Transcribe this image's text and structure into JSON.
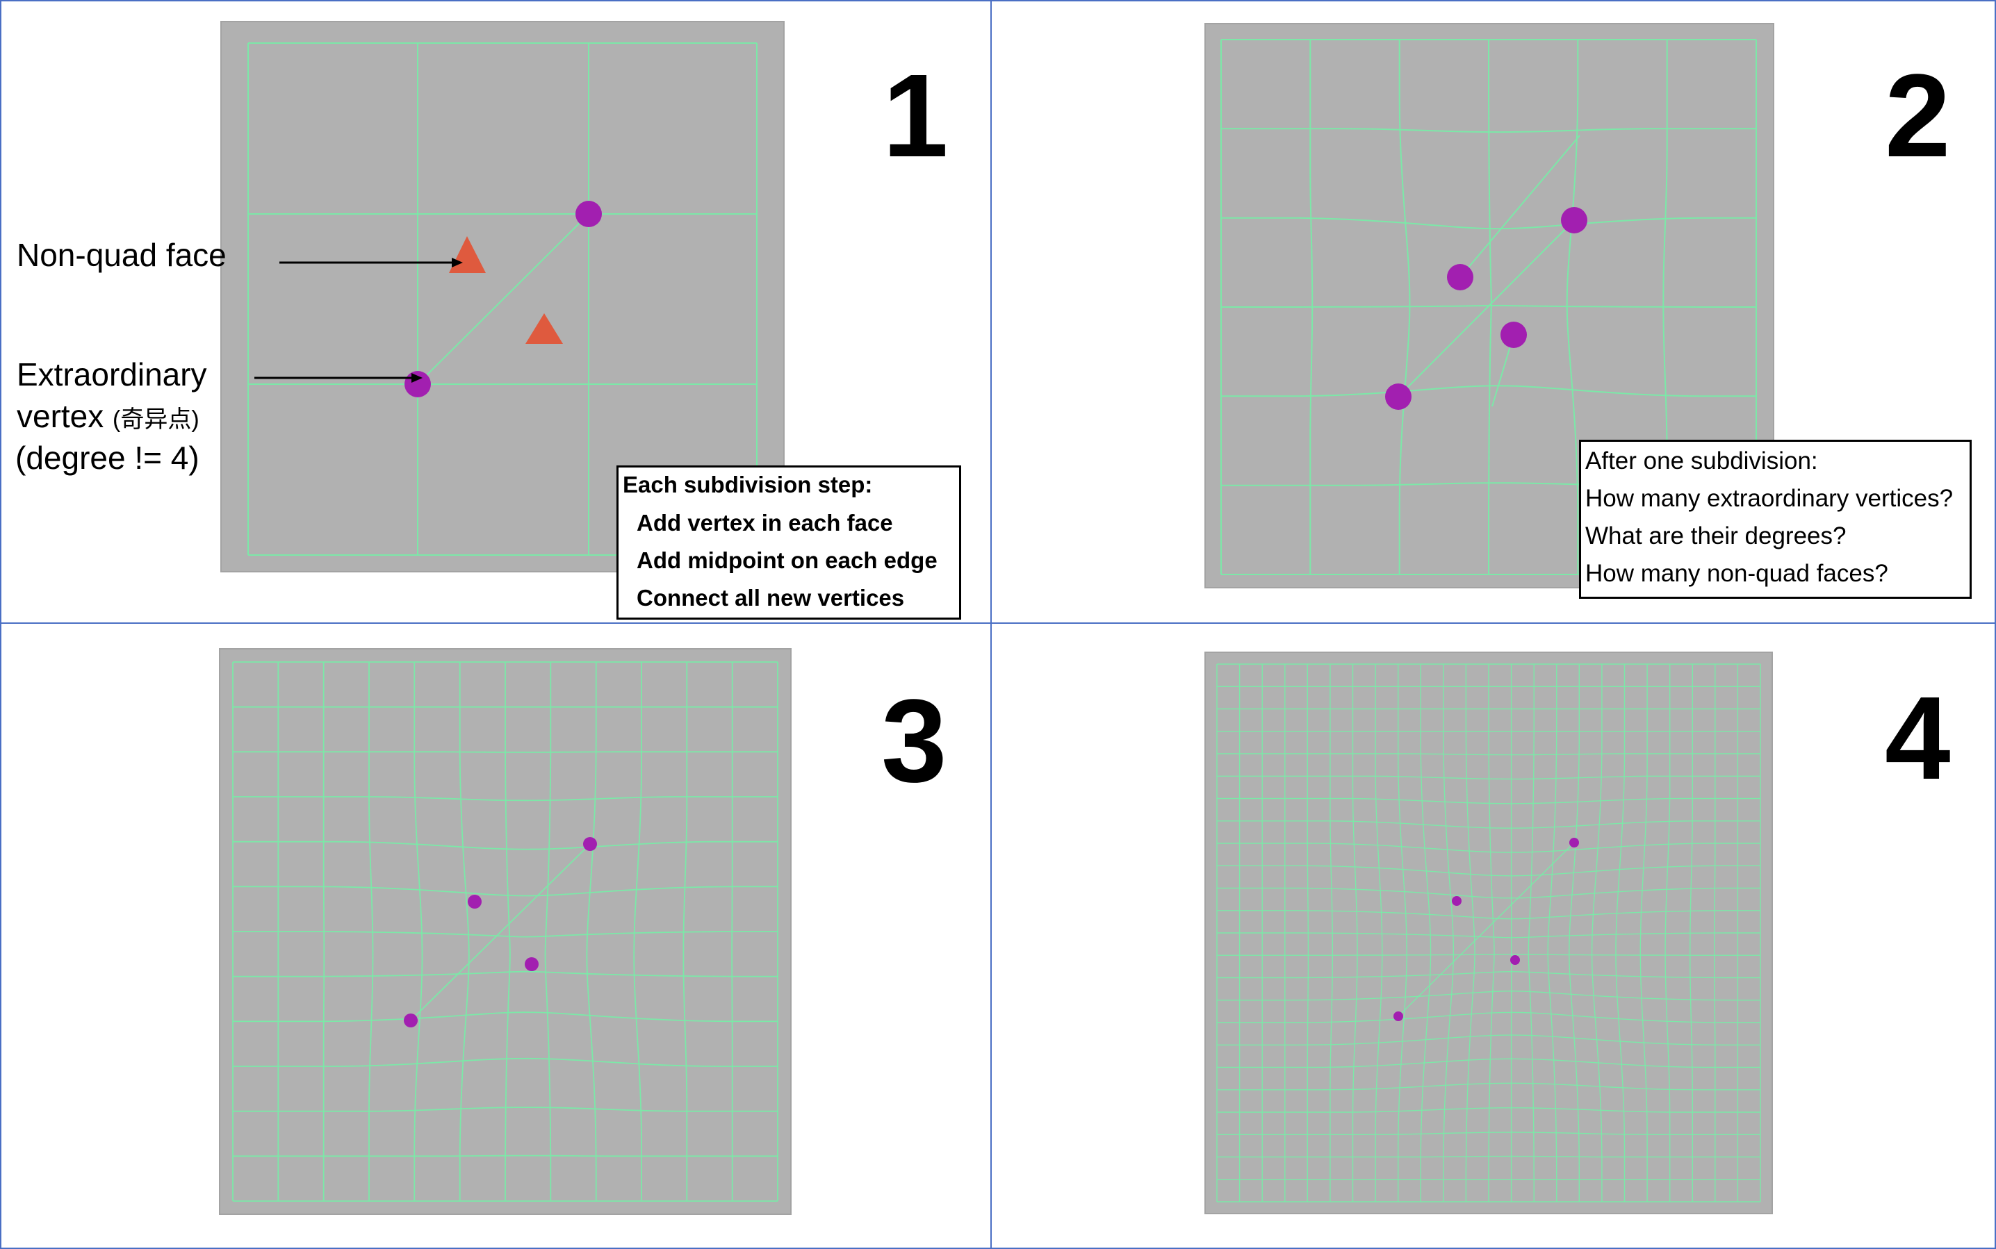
{
  "panels": [
    {
      "number": "1"
    },
    {
      "number": "2"
    },
    {
      "number": "3"
    },
    {
      "number": "4"
    }
  ],
  "annotations": {
    "non_quad_face": "Non-quad face",
    "extraordinary_line1": "Extraordinary",
    "extraordinary_line2": "vertex",
    "extraordinary_cn": "(奇异点)",
    "extraordinary_line3": "(degree != 4)"
  },
  "step_box": {
    "title": "Each subdivision step:",
    "items": [
      "Add vertex in each face",
      "Add midpoint on each edge",
      "Connect all new vertices"
    ]
  },
  "question_box": {
    "lines": [
      "After one subdivision:",
      "How many extraordinary vertices?",
      "What are their degrees?",
      "How many non-quad faces?"
    ]
  },
  "colors": {
    "mesh_background": "#b1b1b1",
    "mesh_line": "#7ce8a8",
    "vertex": "#a21fb0",
    "face_marker": "#df5a3e",
    "panel_border": "#4a6fc4"
  }
}
